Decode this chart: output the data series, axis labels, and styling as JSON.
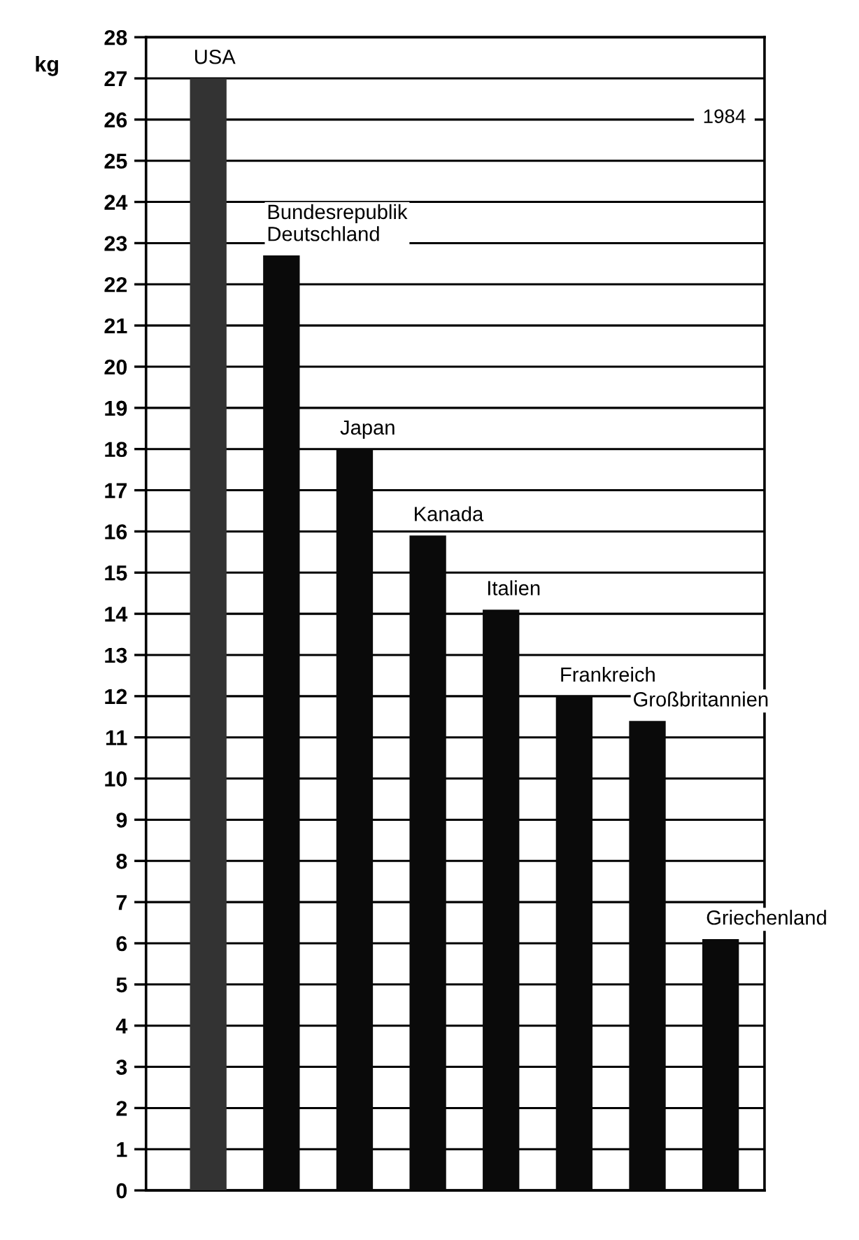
{
  "chart_data": {
    "type": "bar",
    "categories": [
      null,
      null,
      null,
      null,
      null,
      null,
      null,
      null
    ],
    "series": [
      {
        "name": "USA",
        "color": "#333333",
        "values": [
          27,
          null,
          null,
          null,
          null,
          null,
          null,
          null
        ]
      },
      {
        "name": "Bundesrepublik\nDeutschland",
        "color": "#0a0a0a",
        "values": [
          null,
          22.7,
          null,
          null,
          null,
          null,
          null,
          null
        ]
      },
      {
        "name": "Japan",
        "color": "#0a0a0a",
        "values": [
          null,
          null,
          18.0,
          null,
          null,
          null,
          null,
          null
        ]
      },
      {
        "name": "Kanada",
        "color": "#0a0a0a",
        "values": [
          null,
          null,
          null,
          15.9,
          null,
          null,
          null,
          null
        ]
      },
      {
        "name": "Italien",
        "color": "#0a0a0a",
        "values": [
          null,
          null,
          null,
          null,
          14.1,
          null,
          null,
          null
        ]
      },
      {
        "name": "Frankreich",
        "color": "#0a0a0a",
        "values": [
          null,
          null,
          null,
          null,
          null,
          12.0,
          null,
          null
        ]
      },
      {
        "name": "Großbritannien",
        "color": "#0a0a0a",
        "values": [
          null,
          null,
          null,
          null,
          null,
          null,
          11.4,
          null
        ]
      },
      {
        "name": "Griechenland",
        "color": "#0a0a0a",
        "values": [
          null,
          null,
          null,
          null,
          null,
          null,
          null,
          6.1
        ]
      }
    ],
    "ylabel": "kg",
    "annotations": [
      "1984"
    ],
    "ylim": [
      0,
      28
    ],
    "yticks": [
      0,
      1,
      2,
      3,
      4,
      5,
      6,
      7,
      8,
      9,
      10,
      11,
      12,
      13,
      14,
      15,
      16,
      17,
      18,
      19,
      20,
      21,
      22,
      23,
      24,
      25,
      26,
      27,
      28
    ],
    "grid": "y",
    "tick_labels": "y"
  }
}
